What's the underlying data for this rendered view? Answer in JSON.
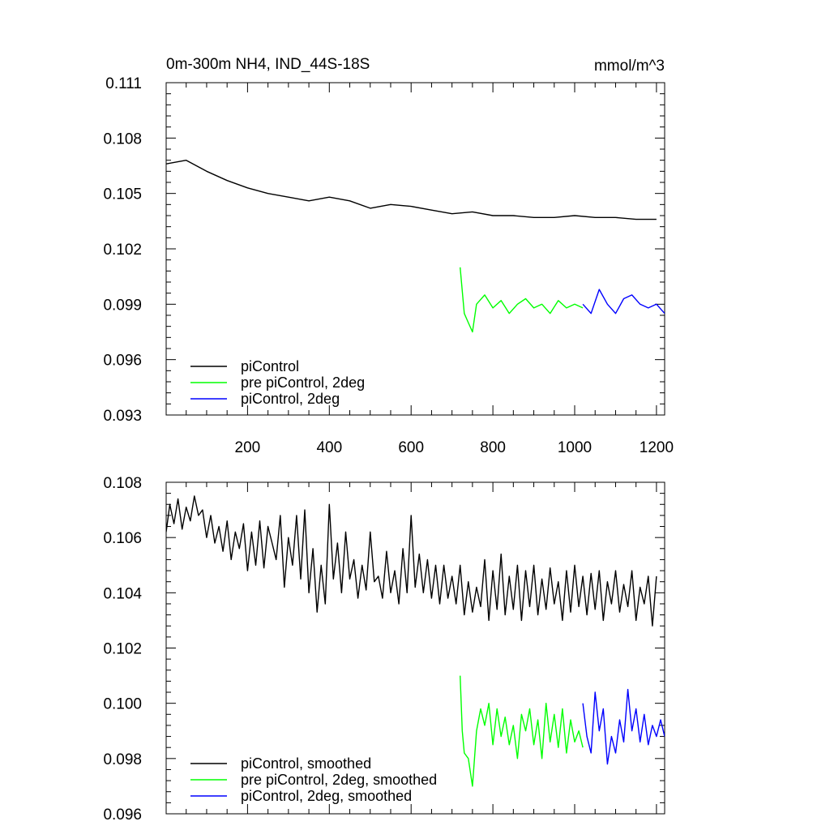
{
  "chart_data": [
    {
      "type": "line",
      "title": "0m-300m NH4, IND_44S-18S",
      "units": "mmol/m^3",
      "xlim": [
        1,
        1220
      ],
      "ylim": [
        0.093,
        0.111
      ],
      "xticks": [
        200,
        400,
        600,
        800,
        1000,
        1200
      ],
      "xtick_labels": [
        "200",
        "400",
        "600",
        "800",
        "1000",
        "1200"
      ],
      "yticks": [
        0.093,
        0.096,
        0.099,
        0.102,
        0.105,
        0.108,
        0.111
      ],
      "ytick_labels": [
        "0.093",
        "0.096",
        "0.099",
        "0.102",
        "0.105",
        "0.108",
        "0.111"
      ],
      "legend_position": "bottom-left",
      "series": [
        {
          "name": "piControl",
          "color": "#000000",
          "x": [
            1,
            50,
            100,
            150,
            200,
            250,
            300,
            350,
            400,
            450,
            500,
            550,
            600,
            650,
            700,
            750,
            800,
            850,
            900,
            950,
            1000,
            1050,
            1100,
            1150,
            1200
          ],
          "y": [
            0.1066,
            0.1068,
            0.1062,
            0.1057,
            0.1053,
            0.105,
            0.1048,
            0.1046,
            0.1048,
            0.1046,
            0.1042,
            0.1044,
            0.1043,
            0.1041,
            0.1039,
            0.104,
            0.1038,
            0.1038,
            0.1037,
            0.1037,
            0.1038,
            0.1037,
            0.1037,
            0.1036,
            0.1036
          ]
        },
        {
          "name": "pre piControl, 2deg",
          "color": "#00ff00",
          "x": [
            720,
            730,
            740,
            750,
            760,
            780,
            800,
            820,
            840,
            860,
            880,
            900,
            920,
            940,
            960,
            980,
            1000,
            1020
          ],
          "y": [
            0.101,
            0.0985,
            0.098,
            0.0975,
            0.099,
            0.0995,
            0.0988,
            0.0992,
            0.0985,
            0.099,
            0.0993,
            0.0988,
            0.099,
            0.0985,
            0.0992,
            0.0988,
            0.099,
            0.0988
          ]
        },
        {
          "name": "piControl, 2deg",
          "color": "#0000ff",
          "x": [
            1020,
            1040,
            1060,
            1080,
            1100,
            1120,
            1140,
            1160,
            1180,
            1200,
            1220
          ],
          "y": [
            0.099,
            0.0985,
            0.0998,
            0.099,
            0.0985,
            0.0993,
            0.0995,
            0.099,
            0.0988,
            0.099,
            0.0985
          ]
        }
      ]
    },
    {
      "type": "line",
      "xlim": [
        1,
        1220
      ],
      "ylim": [
        0.096,
        0.108
      ],
      "xticks": [
        200,
        400,
        600,
        800,
        1000,
        1200
      ],
      "yticks": [
        0.096,
        0.098,
        0.1,
        0.102,
        0.104,
        0.106,
        0.108
      ],
      "ytick_labels": [
        "0.096",
        "0.098",
        "0.100",
        "0.102",
        "0.104",
        "0.106",
        "0.108"
      ],
      "legend_position": "bottom-left",
      "series": [
        {
          "name": "piControl, smoothed",
          "color": "#000000",
          "x": [
            1,
            10,
            20,
            30,
            40,
            50,
            60,
            70,
            80,
            90,
            100,
            110,
            120,
            130,
            140,
            150,
            160,
            170,
            180,
            190,
            200,
            210,
            220,
            230,
            240,
            250,
            260,
            270,
            280,
            290,
            300,
            310,
            320,
            330,
            340,
            350,
            360,
            370,
            380,
            390,
            400,
            410,
            420,
            430,
            440,
            450,
            460,
            470,
            480,
            490,
            500,
            510,
            520,
            530,
            540,
            550,
            560,
            570,
            580,
            590,
            600,
            610,
            620,
            630,
            640,
            650,
            660,
            670,
            680,
            690,
            700,
            710,
            720,
            730,
            740,
            750,
            760,
            770,
            780,
            790,
            800,
            810,
            820,
            830,
            840,
            850,
            860,
            870,
            880,
            890,
            900,
            910,
            920,
            930,
            940,
            950,
            960,
            970,
            980,
            990,
            1000,
            1010,
            1020,
            1030,
            1040,
            1050,
            1060,
            1070,
            1080,
            1090,
            1100,
            1110,
            1120,
            1130,
            1140,
            1150,
            1160,
            1170,
            1180,
            1190,
            1200
          ],
          "y": [
            0.1062,
            0.1072,
            0.1065,
            0.1074,
            0.1063,
            0.1071,
            0.1066,
            0.1075,
            0.1068,
            0.107,
            0.106,
            0.1068,
            0.1058,
            0.1064,
            0.1055,
            0.1066,
            0.1052,
            0.1062,
            0.1056,
            0.1065,
            0.1048,
            0.1062,
            0.105,
            0.1066,
            0.1049,
            0.1064,
            0.1058,
            0.1052,
            0.1068,
            0.1042,
            0.106,
            0.105,
            0.1068,
            0.1045,
            0.107,
            0.104,
            0.1056,
            0.1033,
            0.105,
            0.1036,
            0.1072,
            0.1045,
            0.1058,
            0.104,
            0.1062,
            0.1045,
            0.1052,
            0.1038,
            0.105,
            0.1041,
            0.1062,
            0.1044,
            0.1046,
            0.1038,
            0.1055,
            0.104,
            0.1048,
            0.1036,
            0.1056,
            0.104,
            0.1068,
            0.1042,
            0.1054,
            0.104,
            0.1052,
            0.1038,
            0.105,
            0.1036,
            0.105,
            0.1038,
            0.1046,
            0.1036,
            0.105,
            0.1032,
            0.1044,
            0.1033,
            0.1042,
            0.1035,
            0.1052,
            0.103,
            0.1048,
            0.1034,
            0.1054,
            0.1032,
            0.1046,
            0.1034,
            0.105,
            0.103,
            0.1048,
            0.1035,
            0.105,
            0.1032,
            0.1045,
            0.1034,
            0.1049,
            0.1036,
            0.1044,
            0.103,
            0.1048,
            0.1033,
            0.105,
            0.1035,
            0.1046,
            0.1032,
            0.1047,
            0.1034,
            0.1048,
            0.103,
            0.1044,
            0.1036,
            0.1048,
            0.1033,
            0.1043,
            0.1035,
            0.1048,
            0.103,
            0.1042,
            0.1036,
            0.1046,
            0.1028,
            0.1046
          ]
        },
        {
          "name": "pre piControl, 2deg, smoothed",
          "color": "#00ff00",
          "x": [
            720,
            725,
            730,
            740,
            750,
            760,
            770,
            780,
            790,
            800,
            810,
            820,
            830,
            840,
            850,
            860,
            870,
            880,
            890,
            900,
            910,
            920,
            930,
            940,
            950,
            960,
            970,
            980,
            990,
            1000,
            1010,
            1020
          ],
          "y": [
            0.101,
            0.099,
            0.0982,
            0.098,
            0.097,
            0.099,
            0.0998,
            0.0992,
            0.1,
            0.0985,
            0.0998,
            0.0988,
            0.0995,
            0.0985,
            0.0992,
            0.098,
            0.0996,
            0.099,
            0.0998,
            0.0985,
            0.0994,
            0.098,
            0.1,
            0.0986,
            0.0996,
            0.0984,
            0.0998,
            0.0982,
            0.0994,
            0.0986,
            0.099,
            0.0984
          ]
        },
        {
          "name": "piControl, 2deg, smoothed",
          "color": "#0000ff",
          "x": [
            1020,
            1030,
            1040,
            1050,
            1060,
            1070,
            1080,
            1090,
            1100,
            1110,
            1120,
            1130,
            1140,
            1150,
            1160,
            1170,
            1180,
            1190,
            1200,
            1210,
            1220
          ],
          "y": [
            0.1,
            0.0988,
            0.0982,
            0.1004,
            0.099,
            0.0998,
            0.0978,
            0.0988,
            0.0982,
            0.0994,
            0.0986,
            0.1005,
            0.099,
            0.0998,
            0.0986,
            0.0996,
            0.0985,
            0.0992,
            0.0988,
            0.0994,
            0.0988
          ]
        }
      ]
    }
  ]
}
